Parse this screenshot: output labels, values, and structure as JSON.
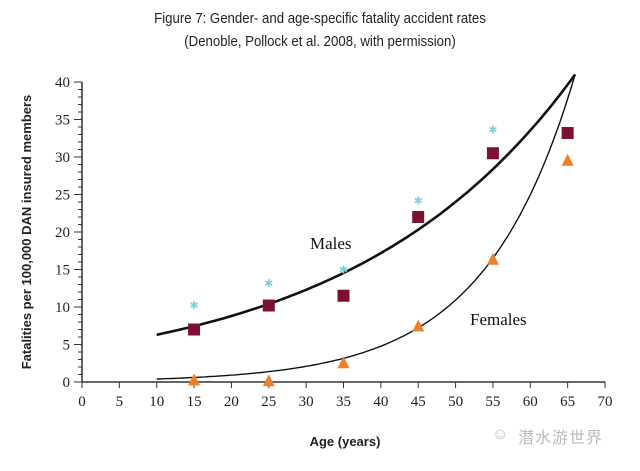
{
  "chart_data": {
    "type": "scatter",
    "title": "Figure 7: Gender- and age-specific fatality accident rates",
    "subtitle": "(Denoble, Pollock et al. 2008, with permission)",
    "xlabel": "Age (years)",
    "ylabel": "Fatalities per 100,000 DAN insured members",
    "xlim": [
      0,
      70
    ],
    "ylim": [
      0,
      40
    ],
    "xticks": [
      0,
      5,
      10,
      15,
      20,
      25,
      30,
      35,
      40,
      45,
      50,
      55,
      60,
      65,
      70
    ],
    "yticks": [
      0,
      5,
      10,
      15,
      20,
      25,
      30,
      35,
      40
    ],
    "grid": false,
    "series": [
      {
        "marker": "star",
        "color": "#7fd3d8",
        "x": [
          15,
          25,
          35,
          45,
          55
        ],
        "y": [
          10.3,
          13.2,
          15.0,
          24.2,
          33.7
        ]
      },
      {
        "marker": "square",
        "color": "#7a1230",
        "x": [
          15,
          25,
          35,
          45,
          55,
          65
        ],
        "y": [
          7.0,
          10.2,
          11.5,
          22.0,
          30.5,
          33.2
        ]
      },
      {
        "marker": "triangle",
        "color": "#f07f2a",
        "x": [
          15,
          25,
          35,
          45,
          55,
          65
        ],
        "y": [
          0.2,
          0.1,
          2.5,
          7.4,
          16.3,
          29.5
        ]
      }
    ],
    "curves": [
      {
        "name": "Males",
        "color": "#111111",
        "x": [
          10,
          15,
          20,
          25,
          30,
          35,
          40,
          45,
          50,
          55,
          60,
          66
        ],
        "y": [
          6.3,
          7.4,
          8.7,
          10.1,
          11.9,
          13.9,
          16.3,
          19.1,
          22.4,
          26.2,
          30.7,
          41.0
        ]
      },
      {
        "name": "Females",
        "color": "#111111",
        "x": [
          10,
          15,
          20,
          25,
          30,
          35,
          40,
          45,
          50,
          55,
          60,
          66
        ],
        "y": [
          0.4,
          0.6,
          0.9,
          1.4,
          2.1,
          3.0,
          4.5,
          6.8,
          10.0,
          15.2,
          23.0,
          41.0
        ]
      }
    ]
  },
  "watermark": "潜水游世界"
}
